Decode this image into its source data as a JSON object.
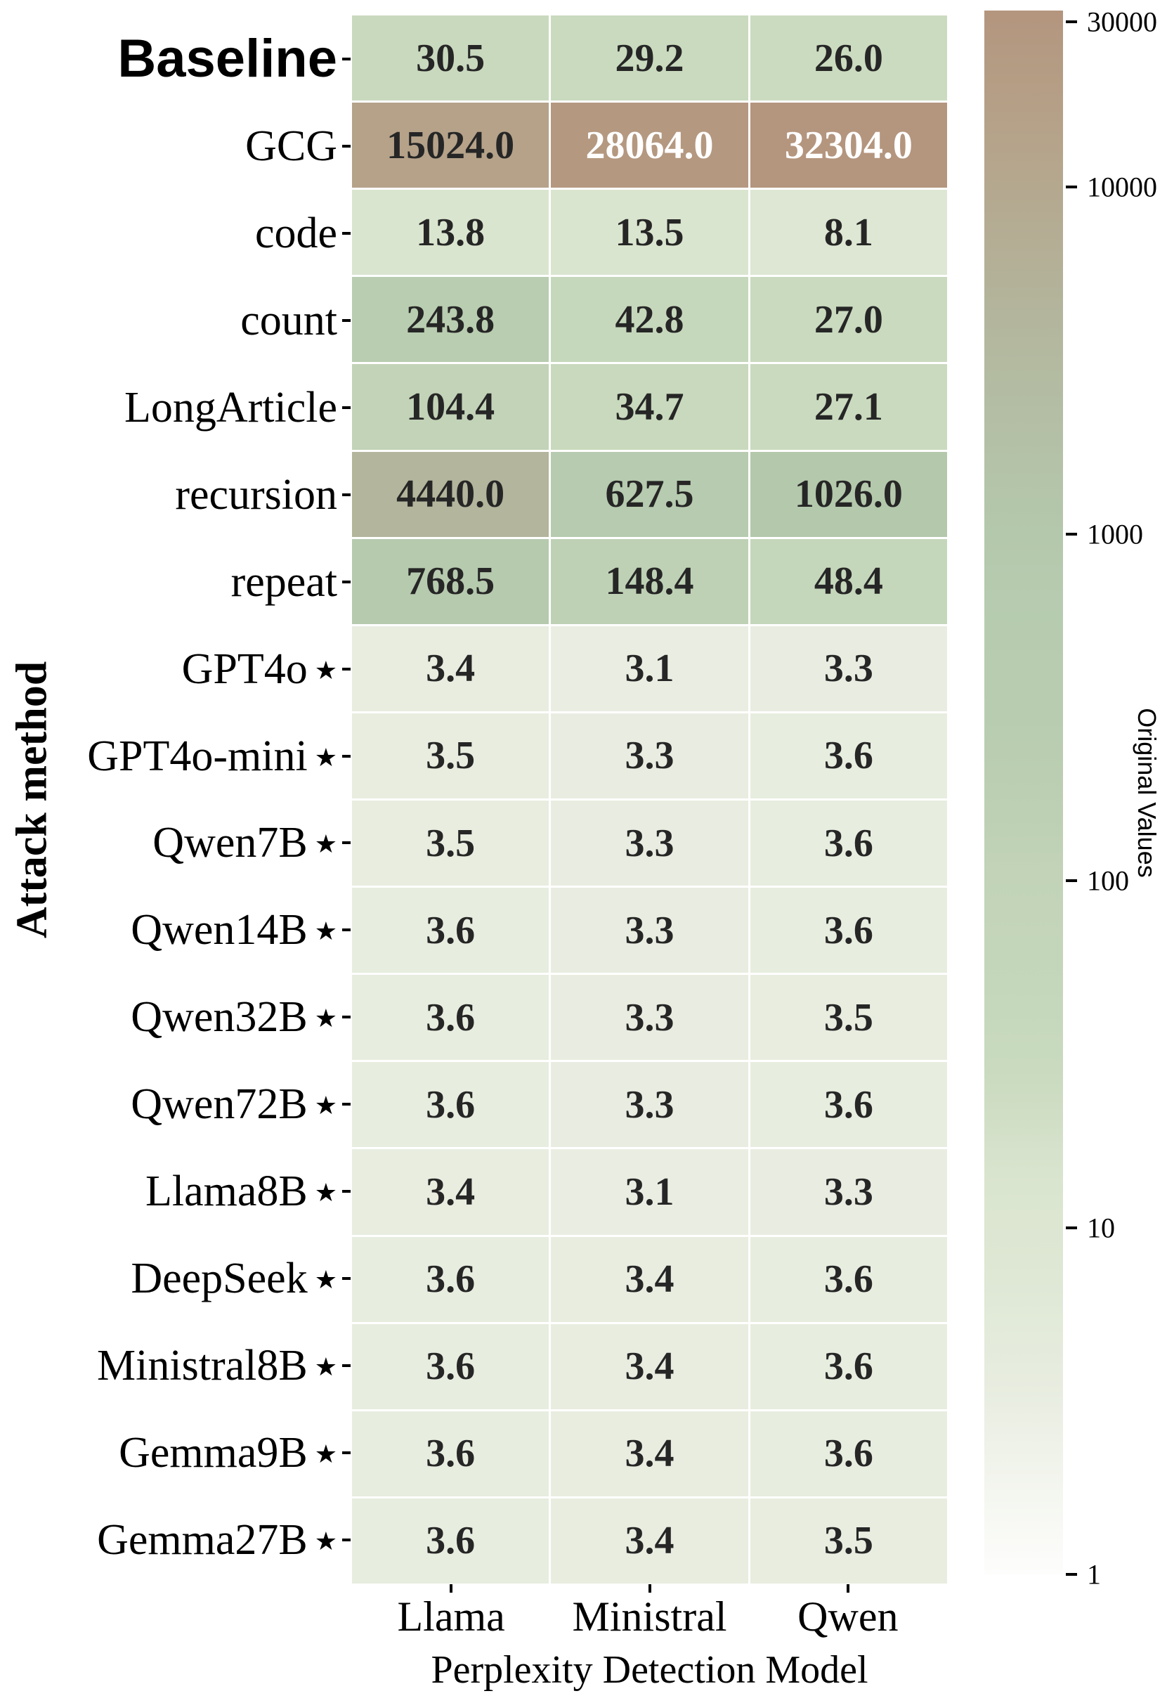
{
  "chart_data": {
    "type": "heatmap",
    "title": "",
    "xlabel": "Perplexity Detection Model",
    "ylabel": "Attack method",
    "columns": [
      "Llama",
      "Ministral",
      "Qwen"
    ],
    "rows": [
      {
        "label": "Baseline",
        "star": false,
        "emphasis": true,
        "values": [
          30.5,
          29.2,
          26.0
        ]
      },
      {
        "label": "GCG",
        "star": false,
        "emphasis": false,
        "values": [
          15024.0,
          28064.0,
          32304.0
        ]
      },
      {
        "label": "code",
        "star": false,
        "emphasis": false,
        "values": [
          13.8,
          13.5,
          8.1
        ]
      },
      {
        "label": "count",
        "star": false,
        "emphasis": false,
        "values": [
          243.8,
          42.8,
          27.0
        ]
      },
      {
        "label": "LongArticle",
        "star": false,
        "emphasis": false,
        "values": [
          104.4,
          34.7,
          27.1
        ]
      },
      {
        "label": "recursion",
        "star": false,
        "emphasis": false,
        "values": [
          4440.0,
          627.5,
          1026.0
        ]
      },
      {
        "label": "repeat",
        "star": false,
        "emphasis": false,
        "values": [
          768.5,
          148.4,
          48.4
        ]
      },
      {
        "label": "GPT4o",
        "star": true,
        "emphasis": false,
        "values": [
          3.4,
          3.1,
          3.3
        ]
      },
      {
        "label": "GPT4o-mini",
        "star": true,
        "emphasis": false,
        "values": [
          3.5,
          3.3,
          3.6
        ]
      },
      {
        "label": "Qwen7B",
        "star": true,
        "emphasis": false,
        "values": [
          3.5,
          3.3,
          3.6
        ]
      },
      {
        "label": "Qwen14B",
        "star": true,
        "emphasis": false,
        "values": [
          3.6,
          3.3,
          3.6
        ]
      },
      {
        "label": "Qwen32B",
        "star": true,
        "emphasis": false,
        "values": [
          3.6,
          3.3,
          3.5
        ]
      },
      {
        "label": "Qwen72B",
        "star": true,
        "emphasis": false,
        "values": [
          3.6,
          3.3,
          3.6
        ]
      },
      {
        "label": "Llama8B",
        "star": true,
        "emphasis": false,
        "values": [
          3.4,
          3.1,
          3.3
        ]
      },
      {
        "label": "DeepSeek",
        "star": true,
        "emphasis": false,
        "values": [
          3.6,
          3.4,
          3.6
        ]
      },
      {
        "label": "Ministral8B",
        "star": true,
        "emphasis": false,
        "values": [
          3.6,
          3.4,
          3.6
        ]
      },
      {
        "label": "Gemma9B",
        "star": true,
        "emphasis": false,
        "values": [
          3.6,
          3.4,
          3.6
        ]
      },
      {
        "label": "Gemma27B",
        "star": true,
        "emphasis": false,
        "values": [
          3.6,
          3.4,
          3.5
        ]
      }
    ],
    "star_symbol": "★",
    "value_decimals": 1,
    "white_text_cells": [
      [
        1,
        1
      ],
      [
        1,
        2
      ]
    ],
    "colorbar": {
      "label": "Original Values",
      "scale": "log",
      "vmin": 1,
      "vmax": 32304,
      "ticks": [
        30000,
        10000,
        1000,
        100,
        10,
        1
      ],
      "tick_labels": [
        "30000",
        "10000",
        "1000",
        "100",
        "10",
        "1"
      ]
    },
    "layout": {
      "grid": true,
      "legend": "colorbar-right"
    },
    "colors": {
      "background": "#ffffff",
      "cell_text": "#262626",
      "cell_text_light": "#ffffff",
      "tick_color": "#000000",
      "colormap_anchors": [
        {
          "value": 1,
          "color": "#fdfdfc"
        },
        {
          "value": 3.4,
          "color": "#e8ede0"
        },
        {
          "value": 8.1,
          "color": "#dde7d3"
        },
        {
          "value": 14,
          "color": "#dae5cf"
        },
        {
          "value": 27,
          "color": "#cadabf"
        },
        {
          "value": 43,
          "color": "#c6d8bc"
        },
        {
          "value": 105,
          "color": "#c2d3b8"
        },
        {
          "value": 245,
          "color": "#b9cdb0"
        },
        {
          "value": 700,
          "color": "#b6cbaf"
        },
        {
          "value": 1030,
          "color": "#b4c8ac"
        },
        {
          "value": 4440,
          "color": "#b3b59c"
        },
        {
          "value": 15024,
          "color": "#b5a289"
        },
        {
          "value": 28064,
          "color": "#b49880"
        },
        {
          "value": 32304,
          "color": "#b4957e"
        }
      ]
    }
  }
}
